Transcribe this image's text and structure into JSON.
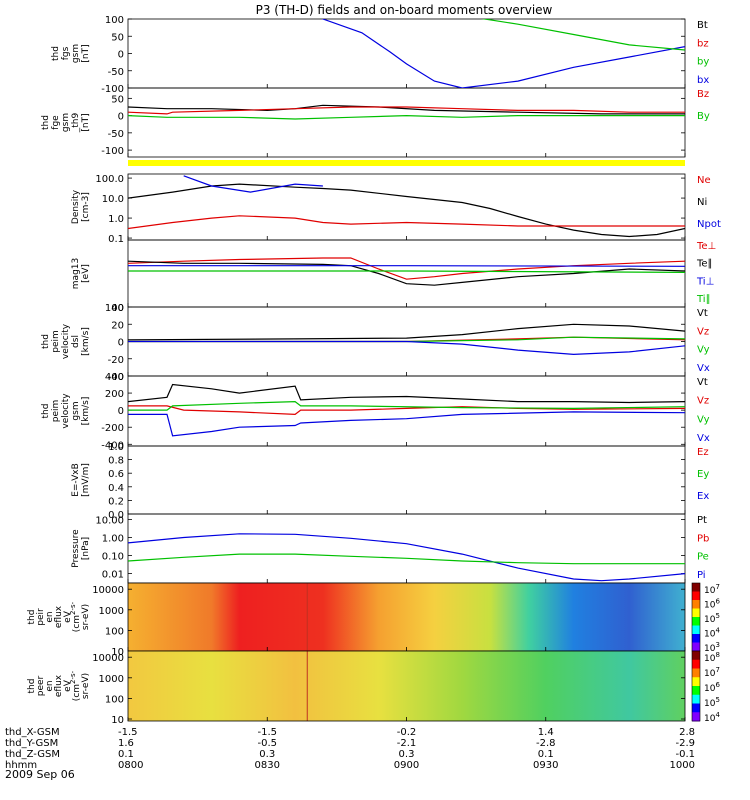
{
  "chart_data": {
    "type": "line",
    "title": "P3 (TH-D) fields and on-board moments overview",
    "date": "2009 Sep 06",
    "time_axis": {
      "ticks": [
        {
          "hhmm": "0800",
          "x": "-1.5",
          "y": "1.6",
          "z": "0.1"
        },
        {
          "hhmm": "0830",
          "x": "-1.5",
          "y": "-0.5",
          "z": "0.3"
        },
        {
          "hhmm": "0900",
          "x": "-0.2",
          "y": "-2.1",
          "z": "0.3"
        },
        {
          "hhmm": "0930",
          "x": "1.4",
          "y": "-2.8",
          "z": "0.1"
        },
        {
          "hhmm": "1000",
          "x": "2.8",
          "y": "-2.9",
          "z": "-0.1"
        }
      ],
      "row_labels": [
        "thd_X-GSM",
        "thd_Y-GSM",
        "thd_Z-GSM",
        "hhmm"
      ]
    },
    "panels": [
      {
        "label_lines": [
          "thd",
          "fgs",
          "gsm",
          "[nT]"
        ],
        "scale": "linear",
        "ylim": [
          -100,
          100
        ],
        "ticks": [
          "100",
          "50",
          "0",
          "-50",
          "-100"
        ],
        "legend": [
          {
            "name": "Bt",
            "color": "#000000"
          },
          {
            "name": "bz",
            "color": "#e00000"
          },
          {
            "name": "by",
            "color": "#00c000"
          },
          {
            "name": "bx",
            "color": "#0000e0"
          }
        ]
      },
      {
        "label_lines": [
          "thd",
          "fge",
          "gsm",
          "_th9",
          "[nT]"
        ],
        "scale": "linear",
        "ylim": [
          -120,
          80
        ],
        "ticks": [
          "50",
          "0",
          "-50",
          "-100"
        ],
        "legend": [
          {
            "name": "Bz",
            "color": "#e00000"
          },
          {
            "name": "By",
            "color": "#00c000"
          }
        ]
      },
      {
        "label_lines": [
          "Density",
          "[cm-3]"
        ],
        "scale": "log",
        "ylim": [
          0.08,
          160
        ],
        "ticks": [
          "100.0",
          "10.0",
          "1.0",
          "0.1"
        ],
        "legend": [
          {
            "name": "Ne",
            "color": "#e00000"
          },
          {
            "name": "Ni",
            "color": "#000000"
          },
          {
            "name": "Npot",
            "color": "#0000e0"
          }
        ]
      },
      {
        "label_lines": [
          "mag13",
          "[eV]"
        ],
        "scale": "log",
        "ylim": [
          100,
          40000
        ],
        "ticks": [
          "100"
        ],
        "legend": [
          {
            "name": "Te⊥",
            "color": "#e00000"
          },
          {
            "name": "Te∥",
            "color": "#000000"
          },
          {
            "name": "Ti⊥",
            "color": "#0000e0"
          },
          {
            "name": "Ti∥",
            "color": "#00c000"
          }
        ]
      },
      {
        "label_lines": [
          "thd",
          "peim",
          "velocity",
          "dsl",
          "[km/s]"
        ],
        "scale": "linear",
        "ylim": [
          -40,
          40
        ],
        "ticks": [
          "40",
          "20",
          "0",
          "-20",
          "-40"
        ],
        "legend": [
          {
            "name": "Vt",
            "color": "#000000"
          },
          {
            "name": "Vz",
            "color": "#e00000"
          },
          {
            "name": "Vy",
            "color": "#00c000"
          },
          {
            "name": "Vx",
            "color": "#0000e0"
          }
        ]
      },
      {
        "label_lines": [
          "thd",
          "peim",
          "velocity",
          "gsm",
          "[km/s]"
        ],
        "scale": "linear",
        "ylim": [
          -420,
          400
        ],
        "ticks": [
          "400",
          "200",
          "0",
          "-200",
          "-400"
        ],
        "legend": [
          {
            "name": "Vt",
            "color": "#000000"
          },
          {
            "name": "Vz",
            "color": "#e00000"
          },
          {
            "name": "Vy",
            "color": "#00c000"
          },
          {
            "name": "Vx",
            "color": "#0000e0"
          }
        ]
      },
      {
        "label_lines": [
          "E=-VxB",
          "[mV/m]"
        ],
        "scale": "linear",
        "ylim": [
          0,
          1
        ],
        "ticks": [
          "1.0",
          "0.8",
          "0.6",
          "0.4",
          "0.2",
          "0.0"
        ],
        "legend": [
          {
            "name": "Ez",
            "color": "#e00000"
          },
          {
            "name": "Ey",
            "color": "#00c000"
          },
          {
            "name": "Ex",
            "color": "#0000e0"
          }
        ]
      },
      {
        "label_lines": [
          "Pressure",
          "[nPa]"
        ],
        "scale": "log",
        "ylim": [
          0.003,
          20
        ],
        "ticks": [
          "10.00",
          "1.00",
          "0.10",
          "0.01"
        ],
        "legend": [
          {
            "name": "Pt",
            "color": "#000000"
          },
          {
            "name": "Pb",
            "color": "#e00000"
          },
          {
            "name": "Pe",
            "color": "#00c000"
          },
          {
            "name": "Pi",
            "color": "#0000e0"
          }
        ]
      },
      {
        "label_lines": [
          "thd",
          "peir",
          "en",
          "eflux",
          "eV",
          "(cm^2-s-",
          "sr-eV)"
        ],
        "scale": "log",
        "ylim": [
          10,
          20000
        ],
        "ticks": [
          "10000",
          "1000",
          "100",
          "10"
        ],
        "colorbar_ticks": [
          "10^7",
          "10^6",
          "10^5",
          "10^4",
          "10^3"
        ]
      },
      {
        "label_lines": [
          "thd",
          "peer",
          "en",
          "eflux",
          "eV",
          "(cm^2-s-",
          "sr-eV)"
        ],
        "scale": "log",
        "ylim": [
          8,
          20000
        ],
        "ticks": [
          "10000",
          "1000",
          "100",
          "10"
        ],
        "colorbar_ticks": [
          "10^8",
          "10^7",
          "10^6",
          "10^5",
          "10^4"
        ]
      }
    ],
    "series": [
      {
        "panel": 0,
        "name": "bx",
        "color": "#0000e0",
        "x": [
          0.29,
          0.35,
          0.42,
          0.47,
          0.5,
          0.55,
          0.6,
          0.7,
          0.8,
          0.9,
          1.0
        ],
        "y": [
          150,
          100,
          60,
          5,
          -30,
          -80,
          -100,
          -80,
          -40,
          -10,
          20
        ]
      },
      {
        "panel": 0,
        "name": "by",
        "color": "#00c000",
        "x": [
          0.5,
          0.6,
          0.7,
          0.8,
          0.9,
          1.0
        ],
        "y": [
          150,
          110,
          85,
          55,
          25,
          10
        ]
      },
      {
        "panel": 1,
        "name": "Bt",
        "color": "#000000",
        "x": [
          0.0,
          0.07,
          0.08,
          0.15,
          0.25,
          0.3,
          0.35,
          0.45,
          0.55,
          0.7,
          0.85,
          1.0
        ],
        "y": [
          25,
          20,
          20,
          20,
          15,
          20,
          30,
          25,
          15,
          10,
          5,
          5
        ]
      },
      {
        "panel": 1,
        "name": "Bz",
        "color": "#e00000",
        "x": [
          0.0,
          0.07,
          0.08,
          0.2,
          0.3,
          0.4,
          0.5,
          0.6,
          0.7,
          0.8,
          0.9,
          1.0
        ],
        "y": [
          10,
          5,
          10,
          15,
          20,
          25,
          25,
          20,
          15,
          15,
          10,
          10
        ]
      },
      {
        "panel": 1,
        "name": "By",
        "color": "#00c000",
        "x": [
          0.0,
          0.07,
          0.08,
          0.2,
          0.3,
          0.4,
          0.5,
          0.6,
          0.7,
          0.8,
          0.9,
          1.0
        ],
        "y": [
          0,
          -5,
          -5,
          -5,
          -10,
          -5,
          0,
          -5,
          0,
          0,
          0,
          0
        ]
      },
      {
        "panel": 2,
        "name": "Ni",
        "color": "#000000",
        "x": [
          0.0,
          0.08,
          0.15,
          0.2,
          0.3,
          0.35,
          0.4,
          0.5,
          0.6,
          0.65,
          0.7,
          0.75,
          0.8,
          0.85,
          0.9,
          0.95,
          1.0
        ],
        "y": [
          10,
          20,
          40,
          50,
          35,
          30,
          25,
          12,
          6,
          3,
          1.2,
          0.5,
          0.25,
          0.15,
          0.12,
          0.15,
          0.3
        ]
      },
      {
        "panel": 2,
        "name": "Ne",
        "color": "#e00000",
        "x": [
          0.0,
          0.08,
          0.15,
          0.2,
          0.3,
          0.35,
          0.4,
          0.5,
          0.6,
          0.7,
          0.8,
          0.9,
          1.0
        ],
        "y": [
          0.3,
          0.6,
          1.0,
          1.3,
          1.0,
          0.6,
          0.5,
          0.6,
          0.5,
          0.4,
          0.4,
          0.4,
          0.4
        ]
      },
      {
        "panel": 2,
        "name": "Npot",
        "color": "#0000e0",
        "x": [
          0.1,
          0.15,
          0.22,
          0.3,
          0.35
        ],
        "y": [
          130,
          40,
          20,
          50,
          40
        ]
      },
      {
        "panel": 3,
        "name": "Te⊥",
        "color": "#e00000",
        "x": [
          0.0,
          0.1,
          0.2,
          0.35,
          0.4,
          0.45,
          0.5,
          0.55,
          0.6,
          0.7,
          0.8,
          0.9,
          1.0
        ],
        "y": [
          5000,
          6000,
          7000,
          8000,
          8000,
          3000,
          1200,
          1500,
          2000,
          3000,
          4000,
          5000,
          6000
        ]
      },
      {
        "panel": 3,
        "name": "Te∥",
        "color": "#000000",
        "x": [
          0.0,
          0.1,
          0.2,
          0.35,
          0.4,
          0.45,
          0.5,
          0.55,
          0.6,
          0.7,
          0.8,
          0.9,
          1.0
        ],
        "y": [
          6000,
          5000,
          5000,
          4500,
          4000,
          2000,
          800,
          700,
          900,
          1500,
          2000,
          3000,
          2500
        ]
      },
      {
        "panel": 3,
        "name": "Ti⊥",
        "color": "#0000e0",
        "x": [
          0.0,
          0.5,
          1.0
        ],
        "y": [
          4000,
          4000,
          3800
        ]
      },
      {
        "panel": 3,
        "name": "Ti∥",
        "color": "#00c000",
        "x": [
          0.0,
          0.5,
          1.0
        ],
        "y": [
          2500,
          2500,
          2200
        ]
      },
      {
        "panel": 4,
        "name": "Vt",
        "color": "#000000",
        "x": [
          0.0,
          0.3,
          0.5,
          0.6,
          0.7,
          0.8,
          0.9,
          1.0
        ],
        "y": [
          2,
          3,
          4,
          8,
          15,
          20,
          18,
          12
        ]
      },
      {
        "panel": 4,
        "name": "Vz",
        "color": "#e00000",
        "x": [
          0.0,
          0.5,
          0.7,
          0.8,
          1.0
        ],
        "y": [
          0,
          0,
          3,
          5,
          2
        ]
      },
      {
        "panel": 4,
        "name": "Vy",
        "color": "#00c000",
        "x": [
          0.0,
          0.5,
          0.7,
          0.8,
          1.0
        ],
        "y": [
          0,
          0,
          2,
          5,
          3
        ]
      },
      {
        "panel": 4,
        "name": "Vx",
        "color": "#0000e0",
        "x": [
          0.0,
          0.5,
          0.6,
          0.7,
          0.8,
          0.9,
          1.0
        ],
        "y": [
          0,
          0,
          -3,
          -10,
          -15,
          -12,
          -5
        ]
      },
      {
        "panel": 5,
        "name": "Vt",
        "color": "#000000",
        "x": [
          0.0,
          0.07,
          0.08,
          0.15,
          0.2,
          0.3,
          0.31,
          0.4,
          0.5,
          0.6,
          0.7,
          0.8,
          0.9,
          1.0
        ],
        "y": [
          100,
          150,
          300,
          250,
          200,
          280,
          120,
          150,
          160,
          130,
          100,
          100,
          90,
          100
        ]
      },
      {
        "panel": 5,
        "name": "Vz",
        "color": "#e00000",
        "x": [
          0.0,
          0.07,
          0.1,
          0.2,
          0.3,
          0.31,
          0.4,
          0.5,
          0.6,
          0.7,
          0.8,
          1.0
        ],
        "y": [
          50,
          50,
          0,
          -20,
          -50,
          0,
          0,
          20,
          40,
          20,
          10,
          20
        ]
      },
      {
        "panel": 5,
        "name": "Vy",
        "color": "#00c000",
        "x": [
          0.0,
          0.07,
          0.08,
          0.2,
          0.3,
          0.31,
          0.4,
          0.6,
          0.8,
          1.0
        ],
        "y": [
          0,
          0,
          50,
          80,
          100,
          50,
          50,
          30,
          20,
          40
        ]
      },
      {
        "panel": 5,
        "name": "Vx",
        "color": "#0000e0",
        "x": [
          0.0,
          0.07,
          0.08,
          0.15,
          0.2,
          0.3,
          0.31,
          0.4,
          0.5,
          0.6,
          0.8,
          1.0
        ],
        "y": [
          -50,
          -50,
          -300,
          -250,
          -200,
          -180,
          -150,
          -120,
          -100,
          -50,
          -20,
          -30
        ]
      },
      {
        "panel": 7,
        "name": "Pi",
        "color": "#0000e0",
        "x": [
          0.0,
          0.1,
          0.2,
          0.3,
          0.4,
          0.5,
          0.6,
          0.7,
          0.8,
          0.85,
          0.9,
          1.0
        ],
        "y": [
          0.5,
          1.0,
          1.6,
          1.5,
          0.9,
          0.45,
          0.12,
          0.02,
          0.005,
          0.004,
          0.005,
          0.01
        ]
      },
      {
        "panel": 7,
        "name": "Pe",
        "color": "#00c000",
        "x": [
          0.0,
          0.1,
          0.2,
          0.3,
          0.4,
          0.5,
          0.6,
          0.7,
          0.8,
          0.9,
          1.0
        ],
        "y": [
          0.05,
          0.08,
          0.12,
          0.12,
          0.09,
          0.07,
          0.05,
          0.04,
          0.035,
          0.035,
          0.035
        ]
      }
    ],
    "spectrograms": [
      {
        "panel": 8,
        "columns": [
          {
            "x": 0.0,
            "color": "#f5b030"
          },
          {
            "x": 0.15,
            "color": "#f07a2a"
          },
          {
            "x": 0.2,
            "color": "#ee2020"
          },
          {
            "x": 0.35,
            "color": "#ee3020"
          },
          {
            "x": 0.45,
            "color": "#f5a030"
          },
          {
            "x": 0.55,
            "color": "#f5d040"
          },
          {
            "x": 0.65,
            "color": "#c8e040"
          },
          {
            "x": 0.72,
            "color": "#40d0a0"
          },
          {
            "x": 0.8,
            "color": "#2080e0"
          },
          {
            "x": 0.9,
            "color": "#3060d0"
          },
          {
            "x": 1.0,
            "color": "#40b0d0"
          }
        ]
      },
      {
        "panel": 9,
        "columns": [
          {
            "x": 0.0,
            "color": "#f2c840"
          },
          {
            "x": 0.15,
            "color": "#e8e040"
          },
          {
            "x": 0.3,
            "color": "#f2c040"
          },
          {
            "x": 0.45,
            "color": "#e8e040"
          },
          {
            "x": 0.6,
            "color": "#a0d840"
          },
          {
            "x": 0.75,
            "color": "#50d060"
          },
          {
            "x": 0.9,
            "color": "#40c8a0"
          },
          {
            "x": 1.0,
            "color": "#60d060"
          }
        ]
      }
    ]
  }
}
